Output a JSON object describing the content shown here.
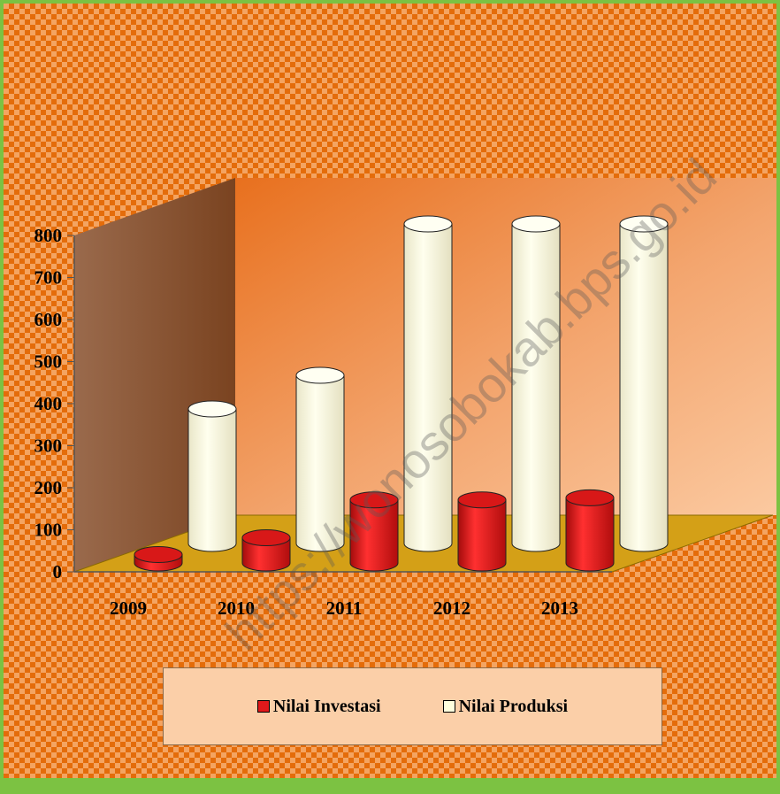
{
  "chart_data": {
    "type": "bar",
    "categories": [
      "2009",
      "2010",
      "2011",
      "2012",
      "2013"
    ],
    "series": [
      {
        "name": "Nilai Investasi",
        "values": [
          20,
          60,
          150,
          150,
          155
        ],
        "color": "#e0191b"
      },
      {
        "name": "Nilai Produksi",
        "values": [
          320,
          400,
          760,
          760,
          760
        ],
        "color": "#ffffdd"
      }
    ],
    "ylim": [
      0,
      800
    ],
    "yticks": [
      "0",
      "100",
      "200",
      "300",
      "400",
      "500",
      "600",
      "700",
      "800"
    ],
    "legend_position": "bottom",
    "style": "3d-cylinder"
  },
  "watermark": "https://wonosobokab.bps.go.id",
  "colors": {
    "border": "#7cc242",
    "pattern_dark": "#e46c0a",
    "pattern_light": "#f4a461",
    "floor": "#d4a017",
    "back_wall": "#f0a060",
    "side_wall": "#8a5a3a"
  }
}
